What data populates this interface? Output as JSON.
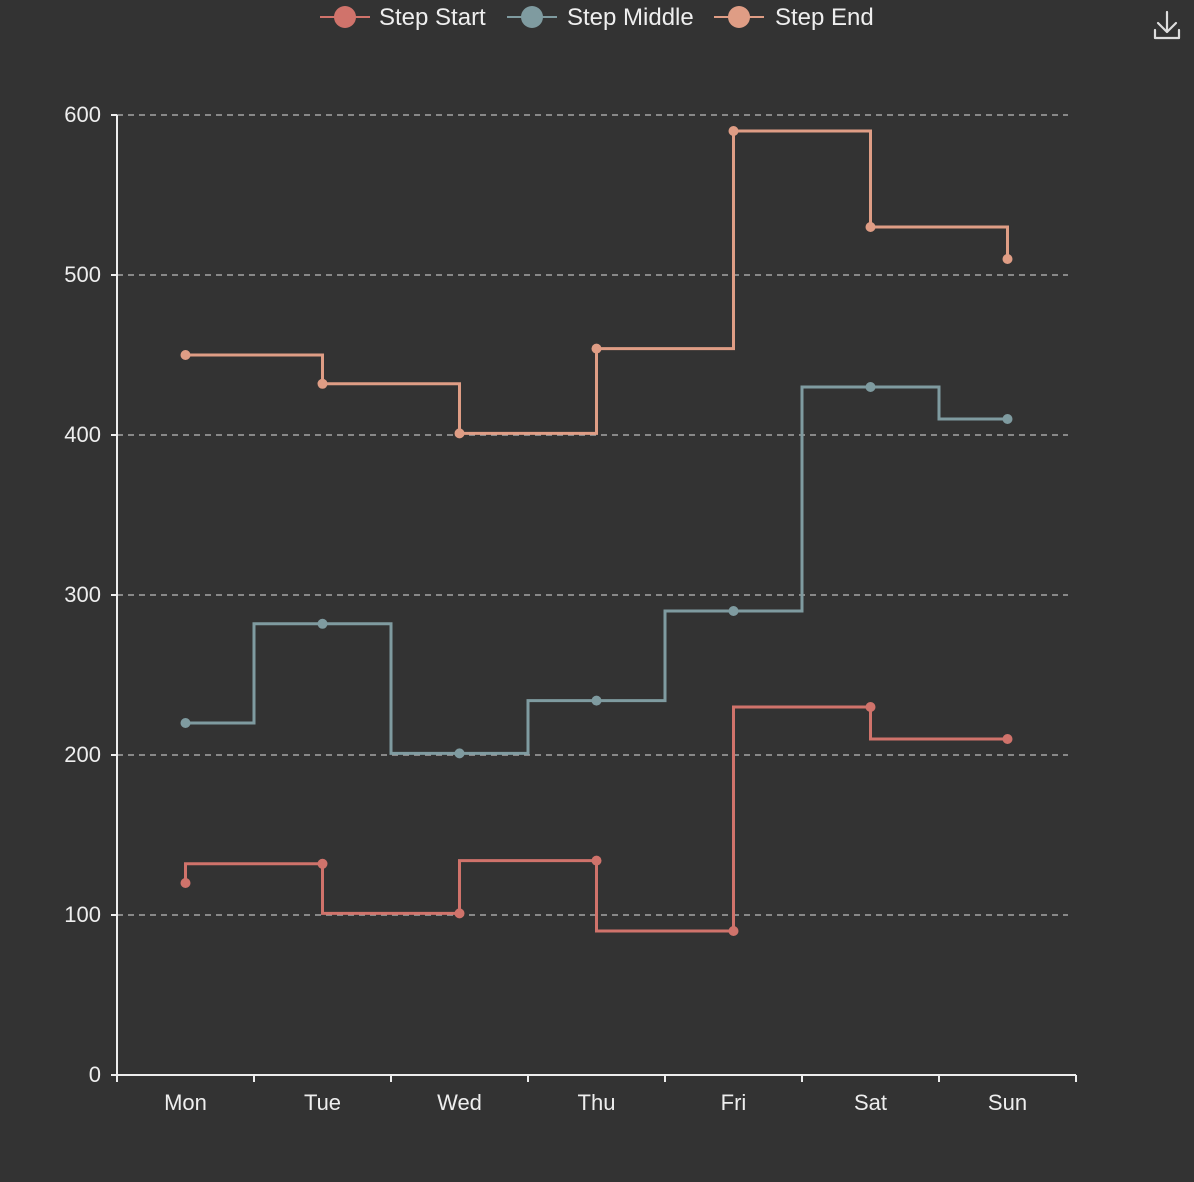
{
  "toolbox": {
    "download_icon": "download-icon"
  },
  "colors": {
    "background": "#333333",
    "axis": "#eeeeee",
    "grid": "#bbbbbb",
    "step_start": "#d0736b",
    "step_middle": "#7f9ba0",
    "step_end": "#df9d85"
  },
  "chart_data": {
    "type": "line",
    "step": true,
    "categories": [
      "Mon",
      "Tue",
      "Wed",
      "Thu",
      "Fri",
      "Sat",
      "Sun"
    ],
    "ylim": [
      0,
      600
    ],
    "yticks": [
      0,
      100,
      200,
      300,
      400,
      500,
      600
    ],
    "grid": true,
    "legend_position": "top-center",
    "series": [
      {
        "name": "Step Start",
        "step": "start",
        "color": "#d0736b",
        "values": [
          120,
          132,
          101,
          134,
          90,
          230,
          210
        ]
      },
      {
        "name": "Step Middle",
        "step": "middle",
        "color": "#7f9ba0",
        "values": [
          220,
          282,
          201,
          234,
          290,
          430,
          410
        ]
      },
      {
        "name": "Step End",
        "step": "end",
        "color": "#df9d85",
        "values": [
          450,
          432,
          401,
          454,
          590,
          530,
          510
        ]
      }
    ]
  }
}
